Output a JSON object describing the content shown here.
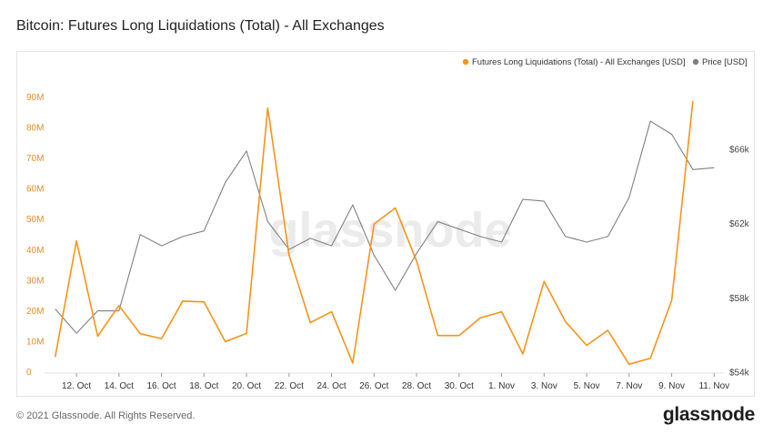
{
  "title": "Bitcoin: Futures Long Liquidations (Total) - All Exchanges",
  "footer": {
    "copyright": "© 2021 Glassnode. All Rights Reserved.",
    "logo": "glassnode"
  },
  "watermark": "glassnode",
  "chart_data": {
    "type": "line",
    "x_ticks": [
      "12. Oct",
      "14. Oct",
      "16. Oct",
      "18. Oct",
      "20. Oct",
      "22. Oct",
      "24. Oct",
      "26. Oct",
      "28. Oct",
      "30. Oct",
      "1. Nov",
      "3. Nov",
      "5. Nov",
      "7. Nov",
      "9. Nov",
      "11. Nov"
    ],
    "y_left": {
      "ticks": [
        "0",
        "10M",
        "20M",
        "30M",
        "40M",
        "50M",
        "60M",
        "70M",
        "80M",
        "90M"
      ],
      "lim": [
        0,
        90000000
      ]
    },
    "y_right": {
      "ticks": [
        "$54k",
        "$58k",
        "$62k",
        "$66k"
      ],
      "lim": [
        54000,
        68000
      ]
    },
    "legend_position": "top-right",
    "series": [
      {
        "name": "Futures Long Liquidations (Total) - All Exchanges [USD]",
        "color": "#f7931a",
        "axis": "left",
        "x": [
          "2021-10-11",
          "2021-10-12",
          "2021-10-13",
          "2021-10-14",
          "2021-10-15",
          "2021-10-16",
          "2021-10-17",
          "2021-10-18",
          "2021-10-19",
          "2021-10-20",
          "2021-10-21",
          "2021-10-22",
          "2021-10-23",
          "2021-10-24",
          "2021-10-25",
          "2021-10-26",
          "2021-10-27",
          "2021-10-28",
          "2021-10-29",
          "2021-10-30",
          "2021-10-31",
          "2021-11-01",
          "2021-11-02",
          "2021-11-03",
          "2021-11-04",
          "2021-11-05",
          "2021-11-06",
          "2021-11-07",
          "2021-11-08",
          "2021-11-09",
          "2021-11-10"
        ],
        "values": [
          5000000,
          43000000,
          11800000,
          21800000,
          12600000,
          11000000,
          23300000,
          23000000,
          10000000,
          12700000,
          86500000,
          38400000,
          16200000,
          19800000,
          3000000,
          48500000,
          53800000,
          36400000,
          12000000,
          12000000,
          17800000,
          19800000,
          6000000,
          29700000,
          16600000,
          8800000,
          13700000,
          2600000,
          4600000,
          23500000,
          88800000
        ]
      },
      {
        "name": "Price [USD]",
        "color": "#808080",
        "axis": "right",
        "x": [
          "2021-10-11",
          "2021-10-12",
          "2021-10-13",
          "2021-10-14",
          "2021-10-15",
          "2021-10-16",
          "2021-10-17",
          "2021-10-18",
          "2021-10-19",
          "2021-10-20",
          "2021-10-21",
          "2021-10-22",
          "2021-10-23",
          "2021-10-24",
          "2021-10-25",
          "2021-10-26",
          "2021-10-27",
          "2021-10-28",
          "2021-10-29",
          "2021-10-30",
          "2021-10-31",
          "2021-11-01",
          "2021-11-02",
          "2021-11-03",
          "2021-11-04",
          "2021-11-05",
          "2021-11-06",
          "2021-11-07",
          "2021-11-08",
          "2021-11-09",
          "2021-11-10",
          "2021-11-11"
        ],
        "values": [
          57400,
          56100,
          57300,
          57300,
          61400,
          60800,
          61300,
          61600,
          64200,
          65900,
          62100,
          60600,
          61200,
          60800,
          63000,
          60300,
          58400,
          60400,
          62100,
          61700,
          61300,
          61000,
          63300,
          63200,
          61300,
          61000,
          61300,
          63400,
          67500,
          66800,
          64900,
          65000
        ]
      }
    ]
  }
}
